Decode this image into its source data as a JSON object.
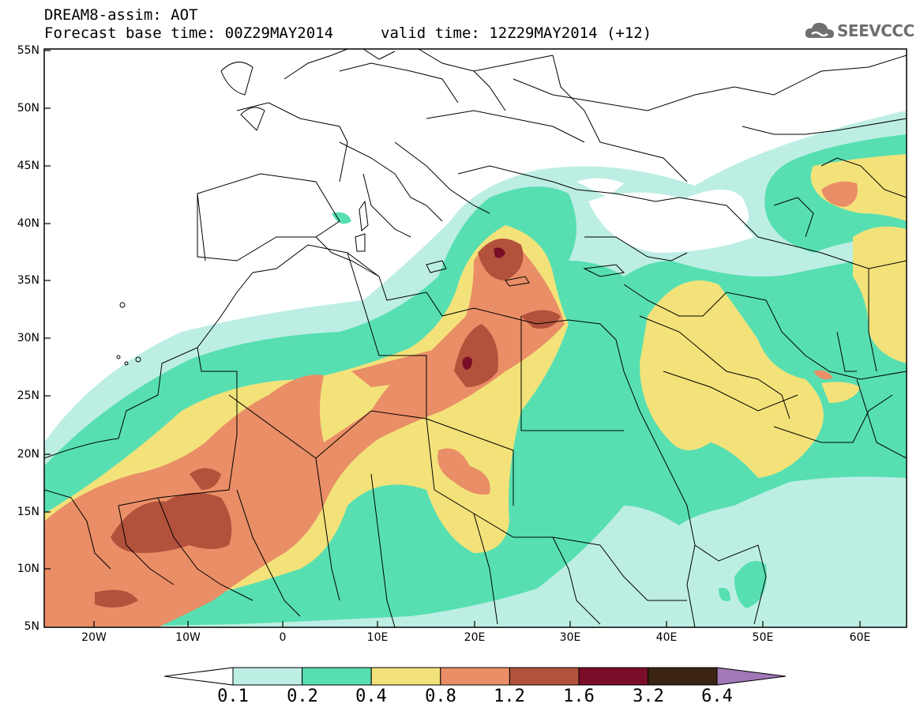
{
  "header": {
    "title_line1": "DREAM8-assim: AOT",
    "title_line2": "Forecast base time: 00Z29MAY2014",
    "title_line3": "valid time: 12Z29MAY2014 (+12)"
  },
  "logo": {
    "text": "SEEVCCC",
    "icon": "cloud-icon"
  },
  "map": {
    "lat_labels": [
      "55N",
      "50N",
      "45N",
      "40N",
      "35N",
      "30N",
      "25N",
      "20N",
      "15N",
      "10N",
      "5N"
    ],
    "lon_labels": [
      "20W",
      "10W",
      "0",
      "10E",
      "20E",
      "30E",
      "40E",
      "50E",
      "60E"
    ],
    "colors": {
      "c01": "#bdeee4",
      "c02": "#57dfb2",
      "c04": "#f3e27a",
      "c08": "#e98e66",
      "c12": "#b2523c",
      "c16": "#7a0d27",
      "c32": "#3b2412",
      "c64": "#a178b8",
      "border": "#000000"
    }
  },
  "colorbar": {
    "labels": [
      "0.1",
      "0.2",
      "0.4",
      "0.8",
      "1.2",
      "1.6",
      "3.2",
      "6.4"
    ],
    "colors": [
      "#bdeee4",
      "#57dfb2",
      "#f3e27a",
      "#e98e66",
      "#b2523c",
      "#7a0d27",
      "#3b2412"
    ],
    "under_color": "#ffffff",
    "over_color": "#a178b8"
  }
}
